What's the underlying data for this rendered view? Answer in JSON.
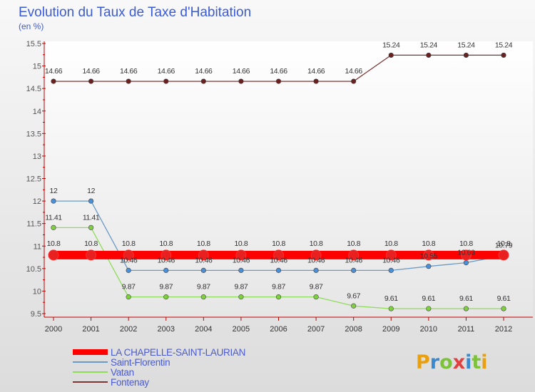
{
  "colors": {
    "title": "#3b5bd6",
    "plot_background_top": "#ffffff",
    "plot_background_bottom": "#e6e6e6"
  },
  "chart_data": {
    "type": "line",
    "title": "Evolution du Taux de Taxe d'Habitation",
    "ylabel": "(en %)",
    "xlabel": "",
    "categories": [
      "2000",
      "2001",
      "2002",
      "2003",
      "2004",
      "2005",
      "2006",
      "2007",
      "2008",
      "2009",
      "2010",
      "2011",
      "2012"
    ],
    "ylim": [
      9.5,
      15.5
    ],
    "yticks": [
      "9.5",
      "10",
      "10.5",
      "11",
      "11.5",
      "12",
      "12.5",
      "13",
      "13.5",
      "14",
      "14.5",
      "15",
      "15.5"
    ],
    "grid": false,
    "legend_position": "bottom-left",
    "series": [
      {
        "name": "LA CHAPELLE-SAINT-LAURIAN",
        "color": "#ff0000",
        "marker_fill": "#e82020",
        "values": [
          10.8,
          10.8,
          10.8,
          10.8,
          10.8,
          10.8,
          10.8,
          10.8,
          10.8,
          10.8,
          10.8,
          10.8,
          10.8
        ],
        "labels": [
          "10.8",
          "10.8",
          "10.8",
          "10.8",
          "10.8",
          "10.8",
          "10.8",
          "10.8",
          "10.8",
          "10.8",
          "10.8",
          "10.8",
          "10.8"
        ]
      },
      {
        "name": "Saint-Florentin",
        "color": "#6b9ac4",
        "marker_fill": "#4a90d9",
        "values": [
          12,
          12,
          10.46,
          10.46,
          10.46,
          10.46,
          10.46,
          10.46,
          10.46,
          10.46,
          10.55,
          10.63,
          10.79
        ],
        "labels": [
          "12",
          "12",
          "10.46",
          "10.46",
          "10.46",
          "10.46",
          "10.46",
          "10.46",
          "10.46",
          "10.46",
          "10.55",
          "10.63",
          "10.79"
        ]
      },
      {
        "name": "Vatan",
        "color": "#8fdc5a",
        "marker_fill": "#7ed03e",
        "values": [
          11.41,
          11.41,
          9.87,
          9.87,
          9.87,
          9.87,
          9.87,
          9.87,
          9.67,
          9.61,
          9.61,
          9.61,
          9.61
        ],
        "labels": [
          "11.41",
          "11.41",
          "9.87",
          "9.87",
          "9.87",
          "9.87",
          "9.87",
          "9.87",
          "9.67",
          "9.61",
          "9.61",
          "9.61",
          "9.61"
        ]
      },
      {
        "name": "Fontenay",
        "color": "#7a3535",
        "marker_fill": "#6b1f1f",
        "values": [
          14.66,
          14.66,
          14.66,
          14.66,
          14.66,
          14.66,
          14.66,
          14.66,
          14.66,
          15.24,
          15.24,
          15.24,
          15.24
        ],
        "labels": [
          "14.66",
          "14.66",
          "14.66",
          "14.66",
          "14.66",
          "14.66",
          "14.66",
          "14.66",
          "14.66",
          "15.24",
          "15.24",
          "15.24",
          "15.24"
        ]
      }
    ]
  },
  "watermark": {
    "text": "Proxiti",
    "letter_colors": [
      "#e8a010",
      "#3a8ad0",
      "#7cc23a",
      "#e04040",
      "#3a8ad0",
      "#7cc23a",
      "#e8a010"
    ]
  }
}
